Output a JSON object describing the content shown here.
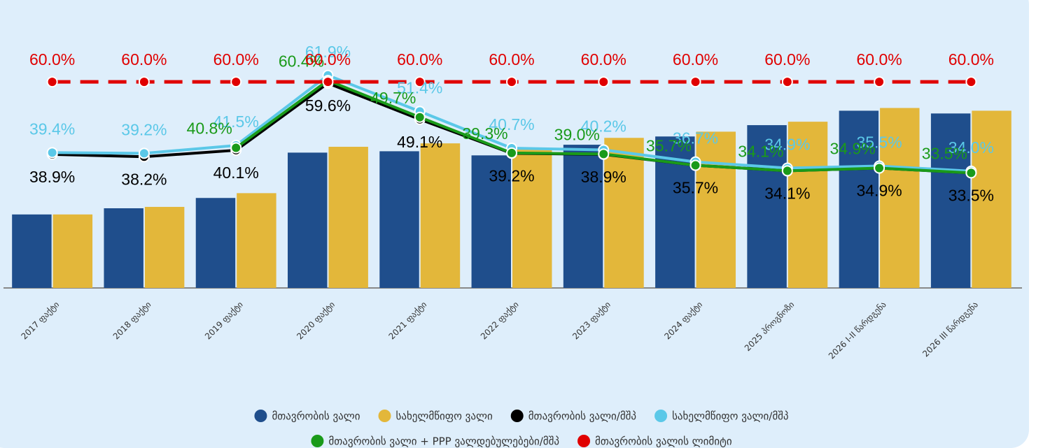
{
  "chart_data": {
    "type": "bar",
    "categories": [
      "2017 ფაქტი",
      "2018 ფაქტი",
      "2019 ფაქტი",
      "2020 ფაქტი",
      "2021 ფაქტი",
      "2022 ფაქტი",
      "2023 ფაქტი",
      "2024 ფაქტი",
      "2025 პროგნოზი",
      "2026 I-II წარდგენა",
      "2026 III წარდგენა"
    ],
    "ylim": [
      0,
      70
    ],
    "series": [
      {
        "name": "მთავრობის ვალი",
        "type": "bar",
        "color": "#1f4e8c",
        "values": [
          21.4,
          23.2,
          26.2,
          39.4,
          39.8,
          38.6,
          41.7,
          44.1,
          47.4,
          51.6,
          50.8
        ]
      },
      {
        "name": "სახელმწიფო ვალი",
        "type": "bar",
        "color": "#e3b73a",
        "values": [
          21.4,
          23.6,
          27.6,
          41.1,
          42.1,
          40.4,
          43.7,
          45.5,
          48.4,
          52.4,
          51.6
        ]
      },
      {
        "name": "მთავრობის ვალი/მშპ",
        "type": "line",
        "color": "#000000",
        "values": [
          38.9,
          38.2,
          40.1,
          59.6,
          49.1,
          39.2,
          38.9,
          35.7,
          34.1,
          34.9,
          33.5
        ],
        "value_labels": [
          "38.9%",
          "38.2%",
          "40.1%",
          "59.6%",
          "49.1%",
          "39.2%",
          "38.9%",
          "35.7%",
          "34.1%",
          "34.9%",
          "33.5%"
        ]
      },
      {
        "name": "სახელმწიფო ვალი/მშპ",
        "type": "line",
        "color": "#5bc8e8",
        "values": [
          39.4,
          39.2,
          41.5,
          61.9,
          51.4,
          40.7,
          40.2,
          36.7,
          34.9,
          35.5,
          34.0
        ],
        "value_labels": [
          "39.4%",
          "39.2%",
          "41.5%",
          "61.9%",
          "51.4%",
          "40.7%",
          "40.2%",
          "36.7%",
          "34.9%",
          "35.5%",
          "34.0%"
        ]
      },
      {
        "name": "მთავრობის ვალი + PPP ვალდებულებები/მშპ",
        "type": "line",
        "color": "#1a9a1a",
        "values": [
          null,
          null,
          40.8,
          60.4,
          49.7,
          39.3,
          39.0,
          35.7,
          34.1,
          34.9,
          33.5
        ],
        "value_labels": [
          null,
          null,
          "40.8%",
          "60.4%",
          "49.7%",
          "39.3%",
          "39.0%",
          "35.7%",
          "34.1%",
          "34.9%",
          "33.5%"
        ]
      },
      {
        "name": "მთავრობის ვალის ლიმიტი",
        "type": "line",
        "dash": true,
        "color": "#e00000",
        "values": [
          60.0,
          60.0,
          60.0,
          60.0,
          60.0,
          60.0,
          60.0,
          60.0,
          60.0,
          60.0,
          60.0
        ],
        "value_labels": [
          "60.0%",
          "60.0%",
          "60.0%",
          "60.0%",
          "60.0%",
          "60.0%",
          "60.0%",
          "60.0%",
          "60.0%",
          "60.0%",
          "60.0%"
        ]
      }
    ]
  }
}
